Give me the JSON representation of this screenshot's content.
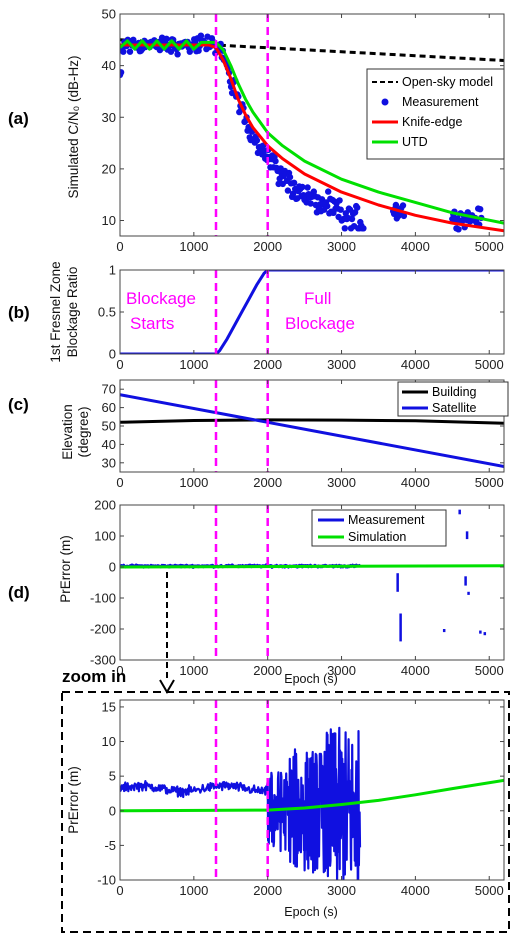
{
  "zoom_label": "zoom in",
  "markers": [
    1300,
    2000
  ],
  "chart_data": [
    {
      "id": "a",
      "type": "line",
      "panel_label": "(a)",
      "ylabel": "Simulated C/N₀ (dB-Hz)",
      "xlim": [
        0,
        5200
      ],
      "ylim": [
        7,
        50
      ],
      "xticks": [
        0,
        1000,
        2000,
        3000,
        4000,
        5000
      ],
      "yticks": [
        10,
        20,
        30,
        40,
        50
      ],
      "legend_position": "right",
      "series": [
        {
          "name": "Open-sky model",
          "kind": "line",
          "color": "#000000",
          "dash": "6,4",
          "x": [
            0,
            1300,
            5200
          ],
          "y": [
            45,
            44,
            41
          ]
        },
        {
          "name": "Measurement",
          "kind": "scatter",
          "color": "#1010e0",
          "x": [],
          "y": []
        },
        {
          "name": "Knife-edge",
          "kind": "line",
          "color": "#ff0000",
          "x": [
            0,
            1200,
            1300,
            1400,
            1500,
            1600,
            1700,
            1800,
            2000,
            2200,
            2500,
            3000,
            3500,
            4000,
            4500,
            5200
          ],
          "y": [
            44,
            44,
            43.5,
            41,
            37.5,
            33.5,
            30.5,
            28,
            24.5,
            22,
            19,
            15.5,
            13,
            11,
            9.5,
            8
          ]
        },
        {
          "name": "UTD",
          "kind": "line",
          "color": "#00e000",
          "x": [
            0,
            100,
            200,
            300,
            400,
            500,
            600,
            700,
            800,
            900,
            1000,
            1100,
            1200,
            1300,
            1400,
            1500,
            1600,
            1700,
            1800,
            2000,
            2200,
            2500,
            3000,
            3500,
            4000,
            4500,
            5200
          ],
          "y": [
            43.5,
            44.8,
            43.2,
            44.8,
            43.2,
            44.8,
            43.2,
            44.8,
            43.2,
            44.8,
            43.2,
            44.5,
            44.5,
            44.5,
            43,
            40,
            36.5,
            33.5,
            31,
            27,
            24.5,
            21.5,
            18,
            15.5,
            13.5,
            11.5,
            9.5
          ]
        }
      ]
    },
    {
      "id": "b",
      "type": "line",
      "panel_label": "(b)",
      "ylabel_lines": [
        "1st Fresnel Zone",
        "Blockage Ratio"
      ],
      "xlim": [
        0,
        5200
      ],
      "ylim": [
        0,
        1
      ],
      "xticks": [
        0,
        1000,
        2000,
        3000,
        4000,
        5000
      ],
      "yticks": [
        0,
        0.5,
        1
      ],
      "annotations": [
        {
          "lines": [
            "Blockage",
            "Starts"
          ],
          "x": 100
        },
        {
          "lines": [
            "Full",
            "Blockage"
          ],
          "x": 2150
        }
      ],
      "series": [
        {
          "name": "Blockage ratio",
          "kind": "line",
          "color": "#1010e0",
          "x": [
            0,
            1300,
            1350,
            1450,
            1550,
            1650,
            1750,
            1850,
            1950,
            2000,
            5200
          ],
          "y": [
            0,
            0,
            0.04,
            0.18,
            0.34,
            0.5,
            0.66,
            0.82,
            0.96,
            1,
            1
          ]
        }
      ]
    },
    {
      "id": "c",
      "type": "line",
      "panel_label": "(c)",
      "ylabel_lines": [
        "Elevation",
        "(degree)"
      ],
      "xlim": [
        0,
        5200
      ],
      "ylim": [
        25,
        75
      ],
      "xticks": [
        0,
        1000,
        2000,
        3000,
        4000,
        5000
      ],
      "yticks": [
        30,
        40,
        50,
        60,
        70
      ],
      "legend_position": "top-right",
      "series": [
        {
          "name": "Building",
          "kind": "line",
          "color": "#000000",
          "x": [
            0,
            1000,
            2000,
            3000,
            4000,
            5200
          ],
          "y": [
            52,
            53,
            53.3,
            53.2,
            52.8,
            51.5
          ]
        },
        {
          "name": "Satellite",
          "kind": "line",
          "color": "#1010e0",
          "x": [
            0,
            5200
          ],
          "y": [
            67,
            28
          ]
        }
      ]
    },
    {
      "id": "d",
      "type": "line",
      "panel_label": "(d)",
      "ylabel": "PrError (m)",
      "xlabel": "Epoch (s)",
      "xlim": [
        0,
        5200
      ],
      "ylim": [
        -300,
        200
      ],
      "xticks": [
        0,
        1000,
        2000,
        3000,
        4000,
        5000
      ],
      "yticks": [
        -300,
        -200,
        -100,
        0,
        100,
        200
      ],
      "legend_position": "top-right",
      "series": [
        {
          "name": "Measurement",
          "kind": "line",
          "color": "#1010e0",
          "x": [],
          "y": []
        },
        {
          "name": "Simulation",
          "kind": "line",
          "color": "#00e000",
          "x": [
            0,
            5200
          ],
          "y": [
            0,
            4
          ]
        }
      ]
    },
    {
      "id": "e",
      "type": "line",
      "ylabel": "PrError (m)",
      "xlabel": "Epoch (s)",
      "xlim": [
        0,
        5200
      ],
      "ylim": [
        -10,
        16
      ],
      "xticks": [
        0,
        1000,
        2000,
        3000,
        4000,
        5000
      ],
      "yticks": [
        -10,
        -5,
        0,
        5,
        10,
        15
      ],
      "series": [
        {
          "name": "Measurement",
          "kind": "line",
          "color": "#1010e0",
          "x": [],
          "y": []
        },
        {
          "name": "Simulation",
          "kind": "line",
          "color": "#00e000",
          "x": [
            0,
            2000,
            2500,
            3000,
            3500,
            4000,
            4500,
            5200
          ],
          "y": [
            0,
            0.1,
            0.4,
            0.9,
            1.5,
            2.3,
            3.2,
            4.4
          ]
        }
      ]
    }
  ]
}
